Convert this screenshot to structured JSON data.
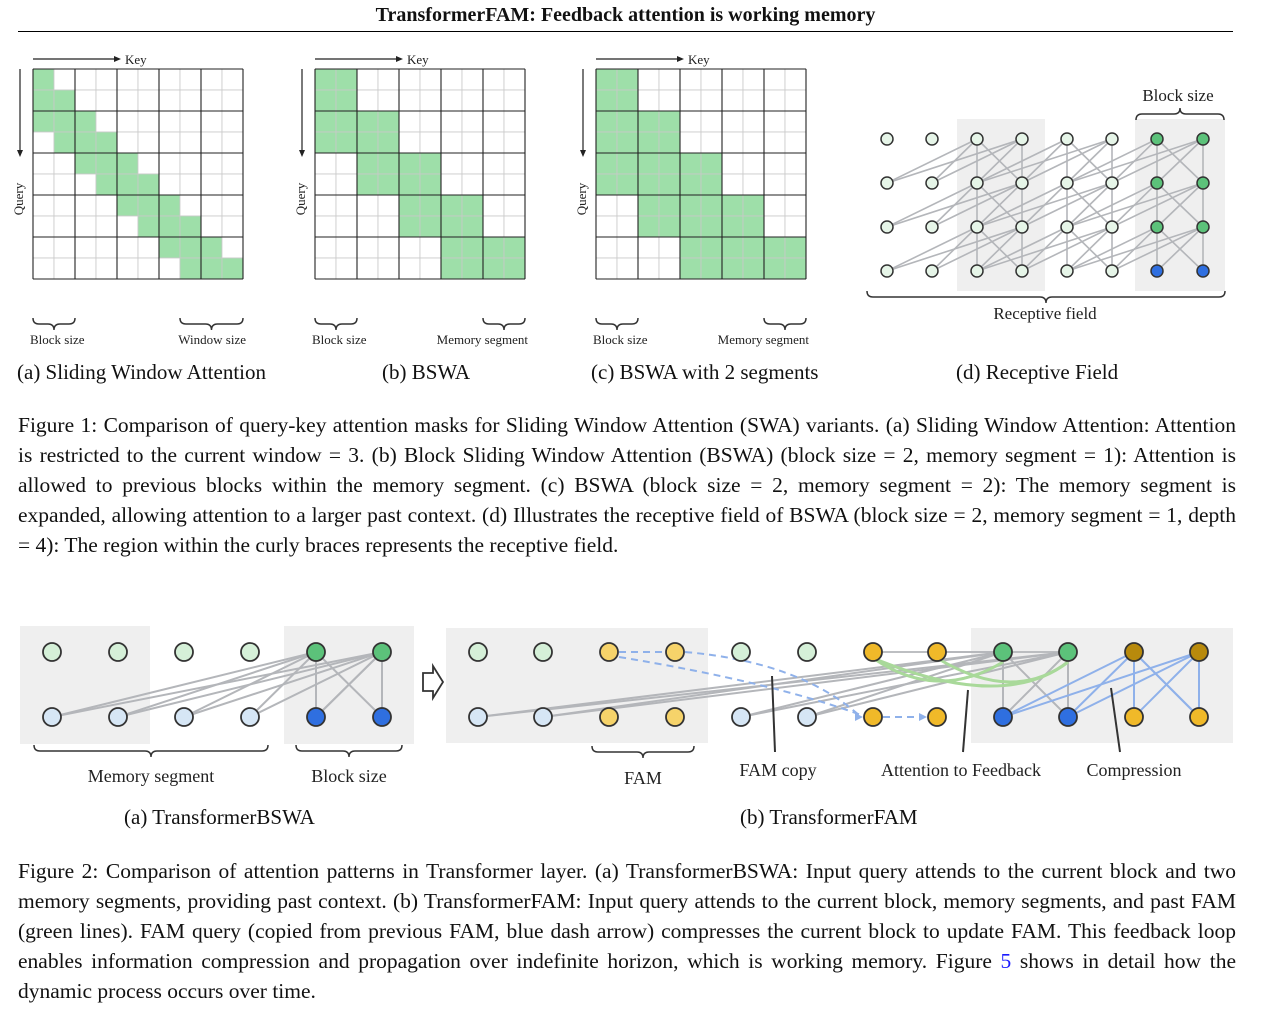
{
  "header": {
    "title": "TransformerFAM: Feedback attention is working memory"
  },
  "figure1": {
    "mask_labels": {
      "key": "Key",
      "query": "Query"
    },
    "panels": [
      {
        "id": "a",
        "caption": "(a) Sliding Window Attention",
        "left_label": "Block size",
        "right_label": "Window size"
      },
      {
        "id": "b",
        "caption": "(b) BSWA",
        "left_label": "Block size",
        "right_label": "Memory segment"
      },
      {
        "id": "c",
        "caption": "(c) BSWA with 2 segments",
        "left_label": "Block size",
        "right_label": "Memory segment"
      },
      {
        "id": "d",
        "caption": "(d) Receptive Field",
        "top_label": "Block size",
        "bottom_label": "Receptive field"
      }
    ],
    "caption_parts": [
      "Figure 1: Comparison of query-key attention masks for Sliding Window Attention (SWA) variants. (a) Sliding Window Attention: Attention is restricted to the current window = 3. (b) Block Sliding Window Attention (BSWA) (block size = 2, memory segment = 1): Attention is allowed to previous blocks within the memory segment. (c) BSWA (block size = 2, memory segment = 2): The memory segment is expanded, allowing attention to a larger past context. (d) Illustrates the receptive field of BSWA (block size = 2, memory segment = 1, depth = 4): The region within the curly braces represents the receptive field."
    ]
  },
  "figure2": {
    "panel_a": {
      "caption": "(a) TransformerBSWA",
      "label_memory": "Memory segment",
      "label_block": "Block size"
    },
    "panel_b": {
      "caption": "(b) TransformerFAM",
      "label_fam": "FAM",
      "label_fam_copy": "FAM copy",
      "label_attention": "Attention to Feedback",
      "label_compression": "Compression"
    },
    "caption_before_link": "Figure 2: Comparison of attention patterns in Transformer layer. (a) TransformerBSWA: Input query attends to the current block and two memory segments, providing past context. (b) TransformerFAM: Input query attends to the current block, memory segments, and past FAM (green lines). FAM query (copied from previous FAM, blue dash arrow) compresses the current block to update FAM. This feedback loop enables information compression and propagation over indefinite horizon, which is working memory. Figure ",
    "caption_link": "5",
    "caption_after_link": " shows in detail how the dynamic process occurs over time."
  },
  "colors": {
    "mask_green": "#9edfa9",
    "node_green_light": "#d5f0d8",
    "node_green": "#5cc27a",
    "node_blue": "#2f6fe0",
    "node_blue_light": "#d6e6f5",
    "node_yellow": "#f6d36a",
    "node_yellow_dark": "#f0b929",
    "node_gold": "#b88a0c",
    "edge_gray": "#b4b6ba",
    "edge_blue": "#8fb1ea",
    "edge_green": "#a9d99a",
    "shade": "#efefef"
  }
}
